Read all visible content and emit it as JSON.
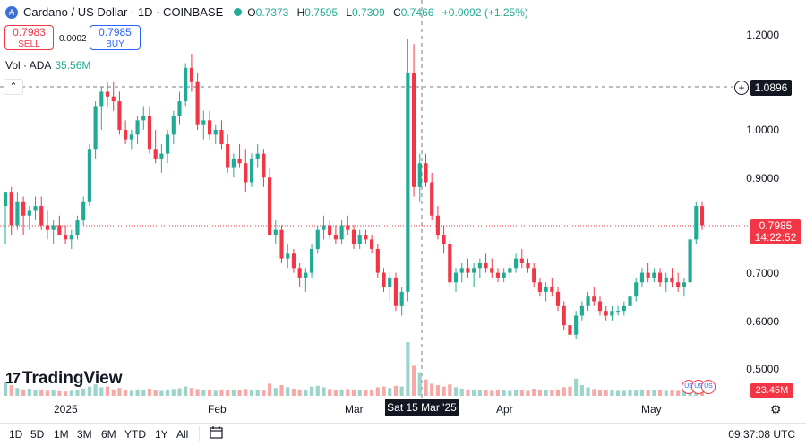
{
  "legend": {
    "title": "Cardano / US Dollar · 1D · COINBASE",
    "ohlc": [
      {
        "k": "O",
        "v": "0.7373"
      },
      {
        "k": "H",
        "v": "0.7595"
      },
      {
        "k": "L",
        "v": "0.7309"
      },
      {
        "k": "C",
        "v": "0.7466"
      }
    ],
    "change": "+0.0092 (+1.25%)",
    "accent": "#22ab94"
  },
  "trade": {
    "sell_price": "0.7983",
    "sell_label": "SELL",
    "spread": "0.0002",
    "buy_price": "0.7985",
    "buy_label": "BUY"
  },
  "volume_legend": {
    "label": "Vol · ADA",
    "value": "35.56M"
  },
  "price_axis": {
    "ticks": [
      "1.2000",
      "1.0000",
      "0.9000",
      "0.7000",
      "0.6000",
      "0.5000"
    ],
    "crosshair_price": "1.0896",
    "last_price": "0.7985",
    "countdown": "14:22:52",
    "volume_last": "23.45M"
  },
  "time_axis": {
    "ticks": [
      "2025",
      "Feb",
      "Mar",
      "Apr",
      "May"
    ],
    "crosshair_date": "Sat 15 Mar '25"
  },
  "logo": {
    "text": "TradingView"
  },
  "bottom_bar": {
    "timeframes": [
      "1D",
      "5D",
      "1M",
      "3M",
      "6M",
      "YTD",
      "1Y",
      "All"
    ],
    "clock": "09:37:08 UTC"
  },
  "colors": {
    "up": "#22ab94",
    "down": "#f23645",
    "volume_up": "#9bd4cb",
    "volume_down": "#f7a9a7"
  },
  "chart_data": {
    "type": "candlestick",
    "title": "Cardano / US Dollar · 1D · COINBASE",
    "ylim": [
      0.46,
      1.24
    ],
    "candles": [
      [
        0.84,
        0.87,
        0.76,
        0.87
      ],
      [
        0.87,
        0.88,
        0.78,
        0.8
      ],
      [
        0.8,
        0.87,
        0.79,
        0.85
      ],
      [
        0.85,
        0.86,
        0.78,
        0.82
      ],
      [
        0.82,
        0.84,
        0.79,
        0.83
      ],
      [
        0.83,
        0.86,
        0.81,
        0.84
      ],
      [
        0.84,
        0.86,
        0.79,
        0.8
      ],
      [
        0.8,
        0.83,
        0.77,
        0.79
      ],
      [
        0.79,
        0.81,
        0.76,
        0.8
      ],
      [
        0.8,
        0.82,
        0.78,
        0.78
      ],
      [
        0.78,
        0.8,
        0.76,
        0.77
      ],
      [
        0.77,
        0.79,
        0.75,
        0.78
      ],
      [
        0.78,
        0.82,
        0.77,
        0.81
      ],
      [
        0.81,
        0.86,
        0.8,
        0.85
      ],
      [
        0.85,
        0.97,
        0.84,
        0.96
      ],
      [
        0.96,
        1.06,
        0.94,
        1.05
      ],
      [
        1.05,
        1.09,
        1.0,
        1.08
      ],
      [
        1.08,
        1.1,
        1.05,
        1.07
      ],
      [
        1.07,
        1.1,
        1.04,
        1.06
      ],
      [
        1.06,
        1.08,
        0.99,
        1.0
      ],
      [
        1.0,
        1.02,
        0.97,
        0.98
      ],
      [
        0.98,
        1.0,
        0.96,
        0.99
      ],
      [
        0.99,
        1.03,
        0.97,
        1.02
      ],
      [
        1.02,
        1.05,
        1.0,
        1.03
      ],
      [
        1.03,
        1.05,
        0.95,
        0.96
      ],
      [
        0.96,
        1.0,
        0.93,
        0.94
      ],
      [
        0.94,
        0.97,
        0.91,
        0.95
      ],
      [
        0.95,
        1.0,
        0.93,
        0.99
      ],
      [
        0.99,
        1.04,
        0.97,
        1.03
      ],
      [
        1.03,
        1.08,
        1.01,
        1.06
      ],
      [
        1.06,
        1.14,
        1.05,
        1.13
      ],
      [
        1.13,
        1.16,
        1.08,
        1.1
      ],
      [
        1.1,
        1.12,
        1.0,
        1.01
      ],
      [
        1.01,
        1.04,
        0.98,
        1.02
      ],
      [
        1.02,
        1.04,
        0.98,
        0.99
      ],
      [
        0.99,
        1.01,
        0.97,
        1.0
      ],
      [
        1.0,
        1.02,
        0.96,
        0.97
      ],
      [
        0.97,
        0.99,
        0.91,
        0.92
      ],
      [
        0.92,
        0.95,
        0.9,
        0.94
      ],
      [
        0.94,
        0.97,
        0.92,
        0.93
      ],
      [
        0.93,
        0.96,
        0.87,
        0.89
      ],
      [
        0.89,
        0.95,
        0.88,
        0.94
      ],
      [
        0.94,
        0.97,
        0.92,
        0.95
      ],
      [
        0.95,
        0.96,
        0.88,
        0.9
      ],
      [
        0.9,
        0.92,
        0.78,
        0.78
      ],
      [
        0.78,
        0.81,
        0.76,
        0.79
      ],
      [
        0.79,
        0.8,
        0.72,
        0.73
      ],
      [
        0.73,
        0.76,
        0.71,
        0.74
      ],
      [
        0.74,
        0.75,
        0.7,
        0.71
      ],
      [
        0.71,
        0.72,
        0.67,
        0.69
      ],
      [
        0.69,
        0.71,
        0.66,
        0.7
      ],
      [
        0.7,
        0.76,
        0.69,
        0.75
      ],
      [
        0.75,
        0.8,
        0.74,
        0.79
      ],
      [
        0.79,
        0.82,
        0.77,
        0.8
      ],
      [
        0.8,
        0.81,
        0.77,
        0.78
      ],
      [
        0.78,
        0.8,
        0.76,
        0.77
      ],
      [
        0.77,
        0.81,
        0.76,
        0.8
      ],
      [
        0.8,
        0.82,
        0.78,
        0.79
      ],
      [
        0.79,
        0.8,
        0.75,
        0.76
      ],
      [
        0.76,
        0.79,
        0.75,
        0.78
      ],
      [
        0.78,
        0.79,
        0.76,
        0.77
      ],
      [
        0.77,
        0.78,
        0.74,
        0.75
      ],
      [
        0.75,
        0.76,
        0.69,
        0.7
      ],
      [
        0.7,
        0.71,
        0.66,
        0.67
      ],
      [
        0.67,
        0.7,
        0.64,
        0.69
      ],
      [
        0.69,
        0.7,
        0.62,
        0.63
      ],
      [
        0.63,
        0.67,
        0.61,
        0.66
      ],
      [
        0.66,
        1.19,
        0.64,
        1.12
      ],
      [
        1.12,
        1.18,
        0.86,
        0.88
      ],
      [
        0.88,
        0.95,
        0.85,
        0.93
      ],
      [
        0.93,
        0.95,
        0.88,
        0.89
      ],
      [
        0.89,
        0.91,
        0.81,
        0.82
      ],
      [
        0.82,
        0.84,
        0.77,
        0.78
      ],
      [
        0.78,
        0.8,
        0.74,
        0.76
      ],
      [
        0.76,
        0.77,
        0.67,
        0.68
      ],
      [
        0.68,
        0.71,
        0.66,
        0.7
      ],
      [
        0.7,
        0.72,
        0.68,
        0.71
      ],
      [
        0.71,
        0.73,
        0.69,
        0.7
      ],
      [
        0.7,
        0.72,
        0.67,
        0.71
      ],
      [
        0.71,
        0.73,
        0.69,
        0.72
      ],
      [
        0.72,
        0.74,
        0.7,
        0.71
      ],
      [
        0.71,
        0.73,
        0.69,
        0.7
      ],
      [
        0.7,
        0.71,
        0.68,
        0.69
      ],
      [
        0.69,
        0.71,
        0.68,
        0.7
      ],
      [
        0.7,
        0.72,
        0.69,
        0.71
      ],
      [
        0.71,
        0.74,
        0.7,
        0.73
      ],
      [
        0.73,
        0.75,
        0.71,
        0.72
      ],
      [
        0.72,
        0.73,
        0.7,
        0.71
      ],
      [
        0.71,
        0.72,
        0.67,
        0.68
      ],
      [
        0.68,
        0.69,
        0.65,
        0.66
      ],
      [
        0.66,
        0.68,
        0.64,
        0.67
      ],
      [
        0.67,
        0.69,
        0.65,
        0.66
      ],
      [
        0.66,
        0.67,
        0.62,
        0.63
      ],
      [
        0.63,
        0.64,
        0.58,
        0.59
      ],
      [
        0.59,
        0.61,
        0.56,
        0.57
      ],
      [
        0.57,
        0.62,
        0.56,
        0.61
      ],
      [
        0.61,
        0.64,
        0.6,
        0.63
      ],
      [
        0.63,
        0.66,
        0.62,
        0.65
      ],
      [
        0.65,
        0.67,
        0.63,
        0.64
      ],
      [
        0.64,
        0.65,
        0.61,
        0.62
      ],
      [
        0.62,
        0.63,
        0.6,
        0.61
      ],
      [
        0.61,
        0.63,
        0.6,
        0.62
      ],
      [
        0.62,
        0.63,
        0.61,
        0.62
      ],
      [
        0.62,
        0.64,
        0.61,
        0.63
      ],
      [
        0.63,
        0.66,
        0.62,
        0.65
      ],
      [
        0.65,
        0.69,
        0.64,
        0.68
      ],
      [
        0.68,
        0.71,
        0.67,
        0.7
      ],
      [
        0.7,
        0.72,
        0.68,
        0.69
      ],
      [
        0.69,
        0.71,
        0.68,
        0.7
      ],
      [
        0.7,
        0.71,
        0.67,
        0.68
      ],
      [
        0.68,
        0.7,
        0.66,
        0.69
      ],
      [
        0.69,
        0.71,
        0.67,
        0.68
      ],
      [
        0.68,
        0.7,
        0.66,
        0.67
      ],
      [
        0.67,
        0.69,
        0.65,
        0.68
      ],
      [
        0.68,
        0.78,
        0.67,
        0.77
      ],
      [
        0.77,
        0.85,
        0.76,
        0.84
      ],
      [
        0.84,
        0.85,
        0.79,
        0.8
      ]
    ],
    "volume": [
      3.8,
      3.0,
      2.2,
      1.8,
      2.0,
      1.6,
      1.5,
      1.4,
      1.6,
      1.3,
      1.2,
      1.4,
      1.6,
      2.0,
      2.6,
      3.2,
      2.4,
      2.6,
      1.8,
      2.2,
      1.6,
      1.4,
      1.8,
      1.7,
      2.0,
      1.6,
      1.4,
      1.7,
      1.9,
      2.1,
      2.6,
      2.2,
      1.9,
      1.6,
      1.7,
      1.4,
      1.8,
      1.6,
      1.5,
      1.6,
      1.9,
      1.6,
      1.5,
      1.7,
      3.4,
      2.2,
      3.0,
      2.4,
      2.0,
      1.8,
      1.7,
      2.6,
      2.8,
      2.4,
      1.9,
      1.7,
      1.8,
      1.9,
      1.8,
      1.6,
      1.5,
      1.7,
      2.4,
      2.6,
      2.2,
      2.8,
      2.6,
      15.0,
      8.4,
      6.6,
      4.6,
      3.4,
      3.0,
      2.6,
      3.2,
      2.4,
      2.0,
      1.8,
      1.7,
      1.6,
      1.5,
      1.4,
      1.6,
      1.5,
      1.4,
      1.6,
      1.5,
      1.4,
      2.0,
      1.8,
      1.7,
      1.6,
      1.8,
      2.4,
      2.6,
      4.8,
      3.0,
      2.4,
      1.9,
      1.7,
      1.6,
      1.5,
      1.4,
      1.4,
      1.5,
      1.6,
      1.8,
      1.7,
      1.6,
      1.5,
      1.4,
      1.5,
      1.4,
      1.5,
      2.0,
      3.0,
      2.3
    ]
  }
}
